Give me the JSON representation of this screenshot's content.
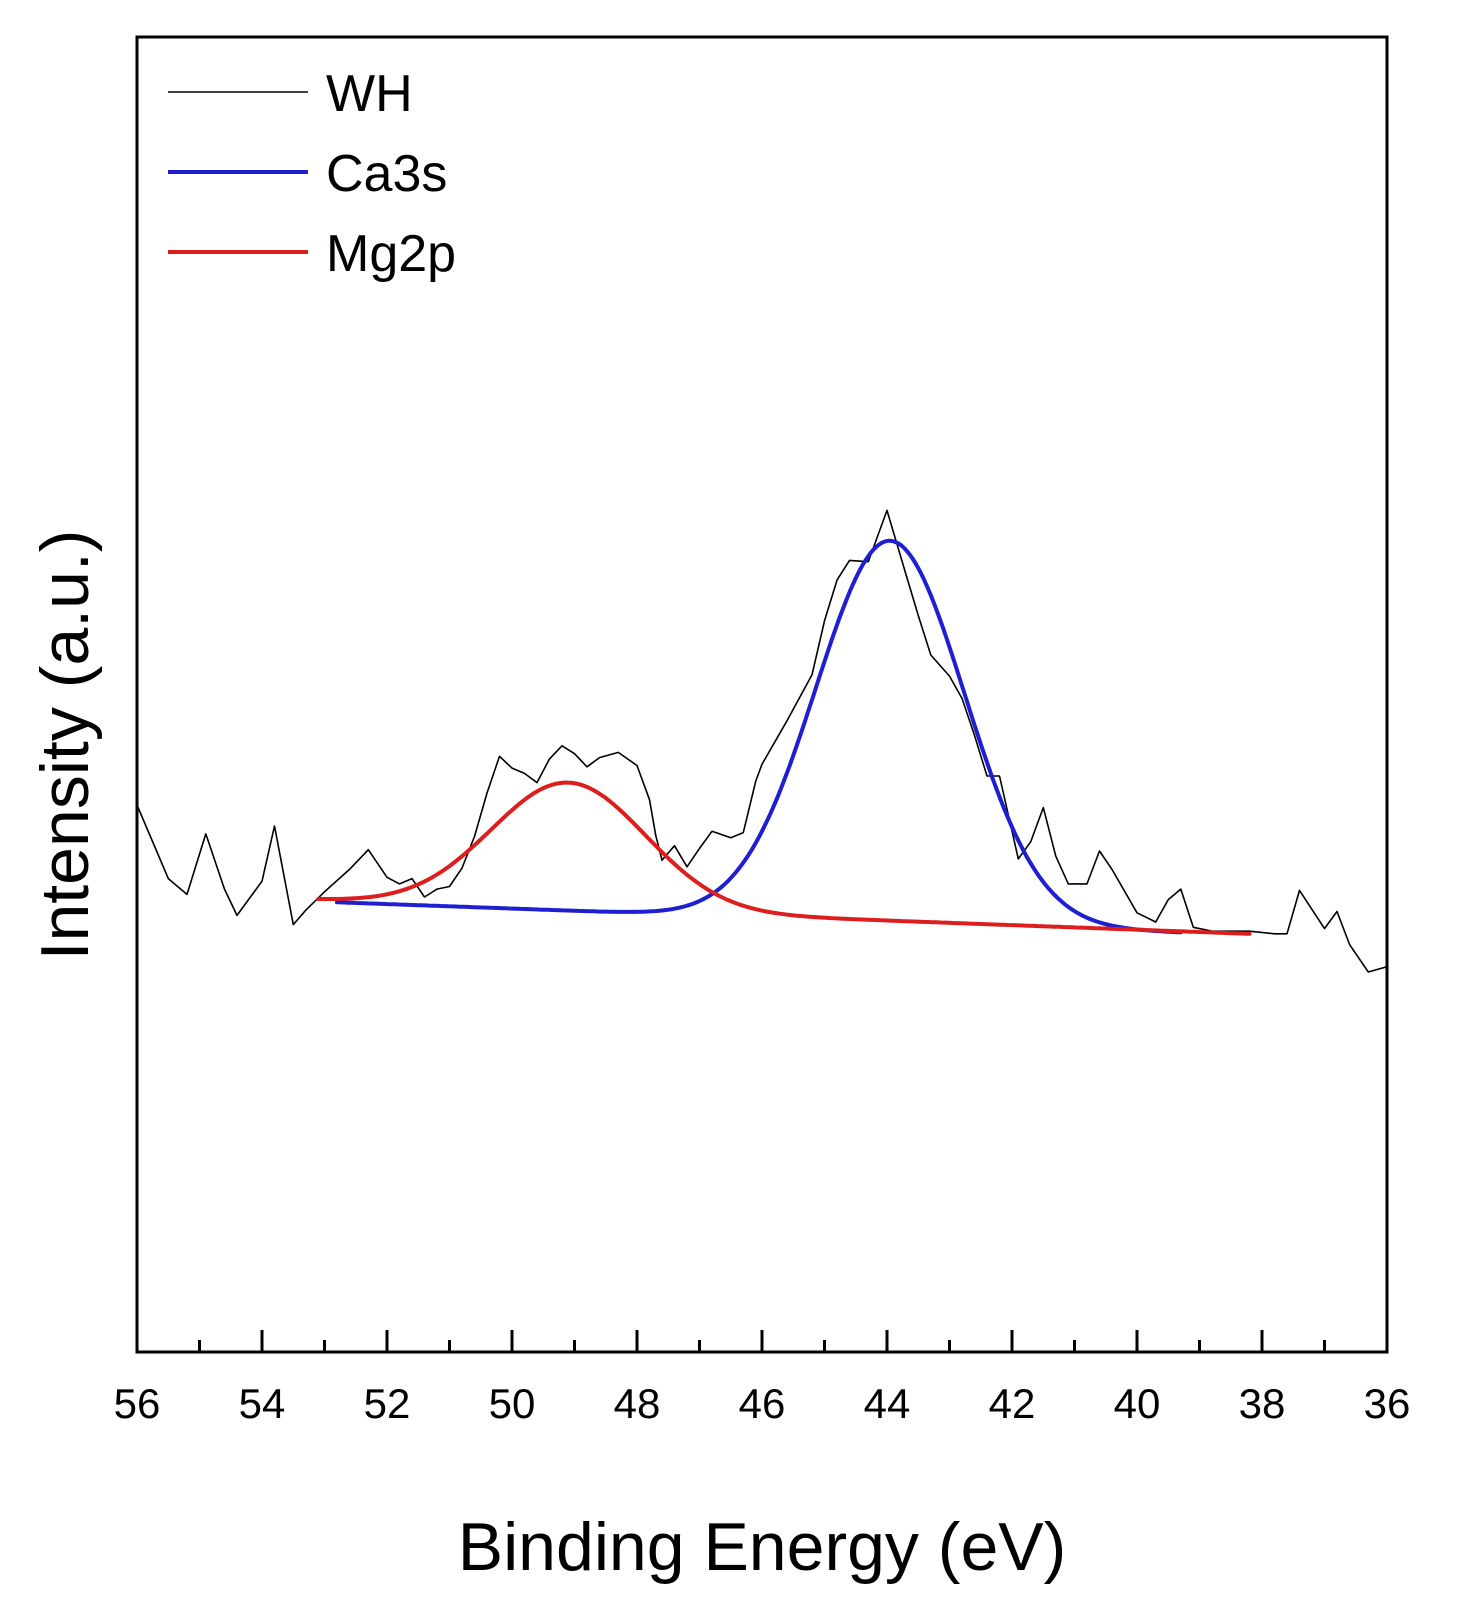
{
  "chart_data": {
    "type": "line",
    "title": "",
    "xlabel": "Binding Energy (eV)",
    "ylabel": "Intensity (a.u.)",
    "xlim": [
      56,
      36
    ],
    "x_reversed": true,
    "ylim": [
      0,
      100
    ],
    "y_ticks_shown": false,
    "grid": false,
    "legend_position": "top-left",
    "x_ticks": [
      56,
      54,
      52,
      50,
      48,
      46,
      44,
      42,
      40,
      38,
      36
    ],
    "x_tick_labels": [
      "56",
      "54",
      "52",
      "50",
      "48",
      "46",
      "44",
      "42",
      "40",
      "38",
      "36"
    ],
    "series": [
      {
        "name": "WH",
        "color": "#000000",
        "width": 1.6,
        "points": [
          [
            56.0,
            41.6
          ],
          [
            55.5,
            36.0
          ],
          [
            55.2,
            34.8
          ],
          [
            54.9,
            39.4
          ],
          [
            54.6,
            35.2
          ],
          [
            54.4,
            33.2
          ],
          [
            54.0,
            35.8
          ],
          [
            53.8,
            40.0
          ],
          [
            53.5,
            32.5
          ],
          [
            53.3,
            33.6
          ],
          [
            53.0,
            35.0
          ],
          [
            52.6,
            36.7
          ],
          [
            52.3,
            38.2
          ],
          [
            52.0,
            36.1
          ],
          [
            51.8,
            35.6
          ],
          [
            51.6,
            36.0
          ],
          [
            51.4,
            34.6
          ],
          [
            51.2,
            35.2
          ],
          [
            51.0,
            35.4
          ],
          [
            50.8,
            36.8
          ],
          [
            50.6,
            39.2
          ],
          [
            50.4,
            42.5
          ],
          [
            50.2,
            45.3
          ],
          [
            50.0,
            44.4
          ],
          [
            49.8,
            44.0
          ],
          [
            49.6,
            43.3
          ],
          [
            49.4,
            45.1
          ],
          [
            49.2,
            46.1
          ],
          [
            49.0,
            45.5
          ],
          [
            48.8,
            44.5
          ],
          [
            48.6,
            45.2
          ],
          [
            48.3,
            45.6
          ],
          [
            48.0,
            44.6
          ],
          [
            47.8,
            42.0
          ],
          [
            47.7,
            39.3
          ],
          [
            47.6,
            37.4
          ],
          [
            47.4,
            38.5
          ],
          [
            47.2,
            36.9
          ],
          [
            47.0,
            38.3
          ],
          [
            46.8,
            39.6
          ],
          [
            46.5,
            39.1
          ],
          [
            46.3,
            39.5
          ],
          [
            46.1,
            43.4
          ],
          [
            46.0,
            44.7
          ],
          [
            45.6,
            48.0
          ],
          [
            45.2,
            51.5
          ],
          [
            45.0,
            55.6
          ],
          [
            44.8,
            58.7
          ],
          [
            44.6,
            60.2
          ],
          [
            44.3,
            60.1
          ],
          [
            44.0,
            64.0
          ],
          [
            43.7,
            59.2
          ],
          [
            43.5,
            56.0
          ],
          [
            43.3,
            53.0
          ],
          [
            43.0,
            51.4
          ],
          [
            42.8,
            49.7
          ],
          [
            42.6,
            46.9
          ],
          [
            42.4,
            43.8
          ],
          [
            42.2,
            43.8
          ],
          [
            41.9,
            37.5
          ],
          [
            41.7,
            38.8
          ],
          [
            41.5,
            41.4
          ],
          [
            41.3,
            37.7
          ],
          [
            41.1,
            35.6
          ],
          [
            40.8,
            35.6
          ],
          [
            40.6,
            38.1
          ],
          [
            40.4,
            36.7
          ],
          [
            40.0,
            33.4
          ],
          [
            39.7,
            32.7
          ],
          [
            39.5,
            34.4
          ],
          [
            39.3,
            35.2
          ],
          [
            39.1,
            32.3
          ],
          [
            38.8,
            32.0
          ],
          [
            38.5,
            32.0
          ],
          [
            38.2,
            32.0
          ],
          [
            37.8,
            31.8
          ],
          [
            37.6,
            31.8
          ],
          [
            37.4,
            35.1
          ],
          [
            37.0,
            32.2
          ],
          [
            36.8,
            33.5
          ],
          [
            36.6,
            31.0
          ],
          [
            36.3,
            28.9
          ],
          [
            36.0,
            29.3
          ]
        ]
      },
      {
        "name": "Ca3s",
        "color": "#1e1ed2",
        "width": 4,
        "curve": "gaussian",
        "center": 43.95,
        "fwhm": 2.8,
        "height": 29.0,
        "baseline_start": [
          52.8,
          34.2
        ],
        "baseline_end": [
          39.3,
          31.9
        ],
        "x_range": [
          52.8,
          39.3
        ]
      },
      {
        "name": "Mg2p",
        "color": "#dc1e1e",
        "width": 4,
        "curve": "gaussian",
        "center": 49.1,
        "fwhm": 2.9,
        "height": 9.6,
        "baseline_start": [
          53.1,
          34.4
        ],
        "baseline_end": [
          38.2,
          31.8
        ],
        "x_range": [
          53.1,
          38.2
        ]
      }
    ]
  }
}
